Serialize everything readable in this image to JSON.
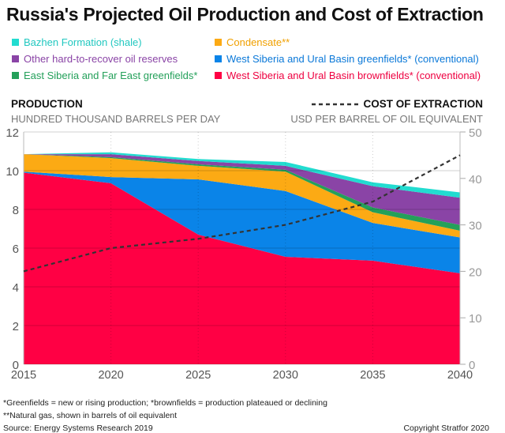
{
  "title": "Russia's Projected Oil Production and Cost of Extraction",
  "legend": [
    {
      "label": "Bazhen Formation (shale)",
      "color": "#22dcd0"
    },
    {
      "label": "Condensate**",
      "color": "#fcaa14"
    },
    {
      "label": "Other hard-to-recover oil reserves",
      "color": "#8a44a6"
    },
    {
      "label": "West Siberia and Ural Basin greenfields* (conventional)",
      "color": "#0a84e8"
    },
    {
      "label": "East Siberia and Far East greenfields*",
      "color": "#24a05a"
    },
    {
      "label": "West Siberia and Ural Basin brownfields* (conventional)",
      "color": "#ff0044"
    }
  ],
  "left_axis": {
    "title": "PRODUCTION",
    "subtitle": "HUNDRED THOUSAND BARRELS PER DAY"
  },
  "right_axis": {
    "title": "COST OF EXTRACTION",
    "subtitle": "USD PER BARREL OF OIL EQUIVALENT"
  },
  "footnotes": [
    "*Greenfields = new or rising production; *brownfields = production plateaued or declining",
    "**Natural gas, shown in barrels of oil equivalent",
    "Source: Energy Systems Research 2019"
  ],
  "copyright": "Copyright Stratfor 2020",
  "chart_data": {
    "type": "area",
    "stacked": true,
    "x": [
      2015,
      2020,
      2025,
      2030,
      2035,
      2040
    ],
    "xlim": [
      2015,
      2040
    ],
    "ylim": [
      0,
      12
    ],
    "y_ticks": [
      0,
      2,
      4,
      6,
      8,
      10,
      12
    ],
    "y2lim": [
      0,
      50
    ],
    "y2_ticks": [
      0,
      10,
      20,
      30,
      40,
      50
    ],
    "x_ticks": [
      2015,
      2020,
      2025,
      2030,
      2035,
      2040
    ],
    "grid": true,
    "series": [
      {
        "name": "West Siberia and Ural Basin brownfields* (conventional)",
        "color": "#ff0044",
        "values": [
          9.9,
          9.35,
          6.7,
          5.55,
          5.35,
          4.7
        ]
      },
      {
        "name": "West Siberia and Ural Basin greenfields* (conventional)",
        "color": "#0a84e8",
        "values": [
          0.05,
          0.32,
          2.85,
          3.4,
          1.95,
          1.85
        ]
      },
      {
        "name": "Condensate**",
        "color": "#fcaa14",
        "values": [
          0.9,
          0.98,
          0.7,
          1.0,
          0.55,
          0.35
        ]
      },
      {
        "name": "East Siberia and Far East greenfields*",
        "color": "#24a05a",
        "values": [
          0,
          0.05,
          0.08,
          0.1,
          0.25,
          0.3
        ]
      },
      {
        "name": "Other hard-to-recover oil reserves",
        "color": "#8a44a6",
        "values": [
          0,
          0.15,
          0.17,
          0.2,
          1.1,
          1.4
        ]
      },
      {
        "name": "Bazhen Formation (shale)",
        "color": "#22dcd0",
        "values": [
          0,
          0.1,
          0.1,
          0.2,
          0.2,
          0.28
        ]
      }
    ],
    "line_series": {
      "name": "COST OF EXTRACTION",
      "axis": "right",
      "style": "dashed",
      "color": "#333333",
      "values": [
        20,
        25,
        27,
        30,
        35,
        45
      ]
    }
  }
}
